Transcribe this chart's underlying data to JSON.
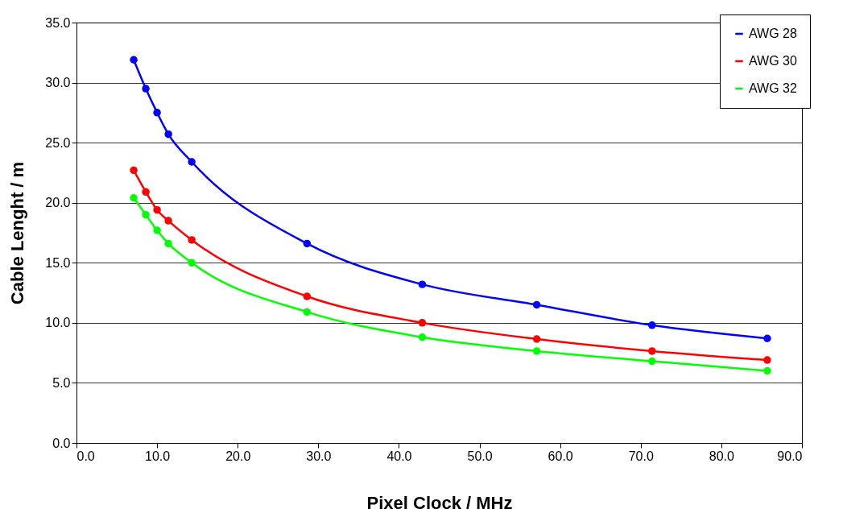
{
  "chart_data": {
    "type": "line",
    "xlabel": "Pixel Clock / MHz",
    "ylabel": "Cable Lenght / m",
    "x": [
      7.1,
      8.6,
      10.0,
      11.4,
      14.3,
      28.6,
      42.9,
      57.1,
      71.4,
      85.7
    ],
    "series": [
      {
        "name": "AWG 28",
        "color": "#0000ff",
        "values": [
          31.9,
          29.5,
          27.5,
          25.7,
          23.4,
          16.6,
          13.2,
          11.5,
          9.8,
          8.7
        ]
      },
      {
        "name": "AWG 30",
        "color": "#ff0000",
        "values": [
          22.7,
          20.9,
          19.4,
          18.5,
          16.9,
          12.2,
          10.0,
          8.65,
          7.65,
          6.9
        ]
      },
      {
        "name": "AWG 32",
        "color": "#00ff00",
        "values": [
          20.4,
          19.0,
          17.7,
          16.6,
          15.0,
          10.9,
          8.8,
          7.65,
          6.8,
          6.0
        ]
      }
    ],
    "xlim": [
      0,
      90
    ],
    "xticks": [
      {
        "value": 0,
        "label": "0.0"
      },
      {
        "value": 10,
        "label": "10.0"
      },
      {
        "value": 20,
        "label": "20.0"
      },
      {
        "value": 30,
        "label": "30.0"
      },
      {
        "value": 40,
        "label": "40.0"
      },
      {
        "value": 50,
        "label": "50.0"
      },
      {
        "value": 60,
        "label": "60.0"
      },
      {
        "value": 70,
        "label": "70.0"
      },
      {
        "value": 80,
        "label": "80.0"
      },
      {
        "value": 90,
        "label": "90.0"
      }
    ],
    "ylim": [
      0,
      35
    ],
    "yticks": [
      {
        "value": 0,
        "label": "0.0"
      },
      {
        "value": 5,
        "label": "5.0"
      },
      {
        "value": 10,
        "label": "10.0"
      },
      {
        "value": 15,
        "label": "15.0"
      },
      {
        "value": 20,
        "label": "20.0"
      },
      {
        "value": 25,
        "label": "25.0"
      },
      {
        "value": 30,
        "label": "30.0"
      },
      {
        "value": 35,
        "label": "35.0"
      }
    ],
    "grid": "y",
    "legend": "top right",
    "marker": "circle",
    "line_style": "solid"
  }
}
